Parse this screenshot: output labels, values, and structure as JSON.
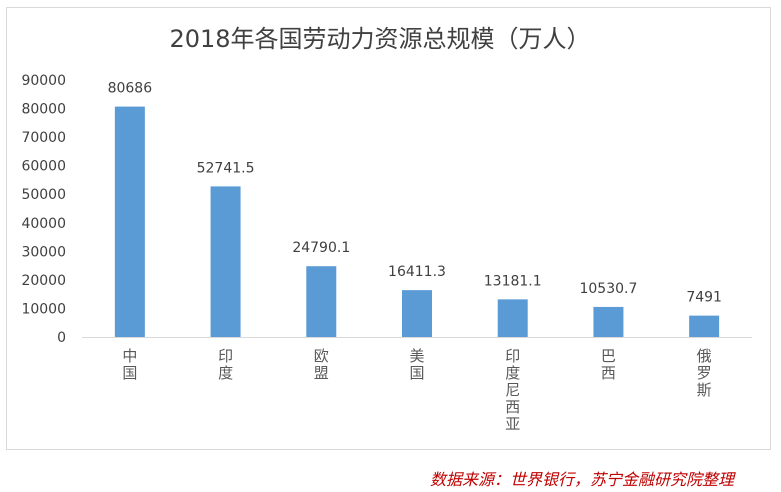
{
  "chart_data": {
    "type": "bar",
    "title": "2018年各国劳动力资源总规模（万人）",
    "categories": [
      "中国",
      "印度",
      "欧盟",
      "美国",
      "印度尼西亚",
      "巴西",
      "俄罗斯"
    ],
    "values": [
      80686,
      52741.5,
      24790.1,
      16411.3,
      13181.1,
      10530.7,
      7491
    ],
    "value_labels": [
      "80686",
      "52741.5",
      "24790.1",
      "16411.3",
      "13181.1",
      "10530.7",
      "7491"
    ],
    "ylim": [
      0,
      90000
    ],
    "yticks": [
      0,
      10000,
      20000,
      30000,
      40000,
      50000,
      60000,
      70000,
      80000,
      90000
    ],
    "grid": false,
    "legend": "none",
    "bar_color": "#5b9bd5",
    "xlabel": "",
    "ylabel": ""
  },
  "source": "数据来源：世界银行，苏宁金融研究院整理",
  "colors": {
    "source_text": "#c00000",
    "axis": "#d9d9d9"
  }
}
